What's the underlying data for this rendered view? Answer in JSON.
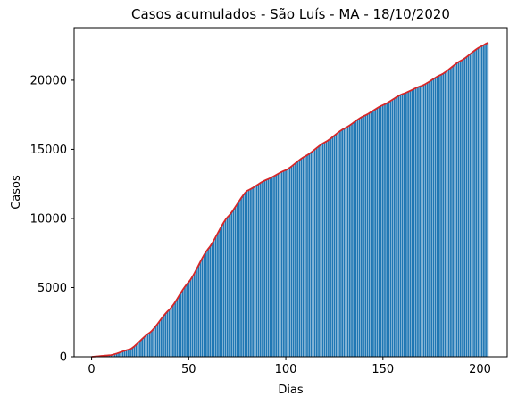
{
  "chart_data": {
    "type": "bar",
    "title": "Casos acumulados - São Luís - MA - 18/10/2020",
    "xlabel": "Dias",
    "ylabel": "Casos",
    "xlim": [
      -9,
      214
    ],
    "ylim": [
      0,
      23800
    ],
    "xticks": [
      0,
      50,
      100,
      150,
      200
    ],
    "yticks": [
      0,
      5000,
      10000,
      15000,
      20000
    ],
    "grid": false,
    "bar_color": "#1f77b4",
    "curve_color": "#d62728",
    "num_days": 205,
    "anchors": {
      "x": [
        0,
        10,
        20,
        30,
        40,
        50,
        60,
        70,
        80,
        90,
        100,
        110,
        120,
        130,
        140,
        150,
        160,
        170,
        180,
        190,
        200,
        204
      ],
      "y": [
        0,
        120,
        550,
        1750,
        3400,
        5400,
        7800,
        10100,
        12000,
        12800,
        13500,
        14500,
        15500,
        16500,
        17400,
        18200,
        19000,
        19600,
        20400,
        21400,
        22400,
        22700
      ]
    },
    "series": [
      {
        "kind": "bar",
        "values_ref": "anchors"
      },
      {
        "kind": "line",
        "values_ref": "anchors"
      }
    ]
  }
}
